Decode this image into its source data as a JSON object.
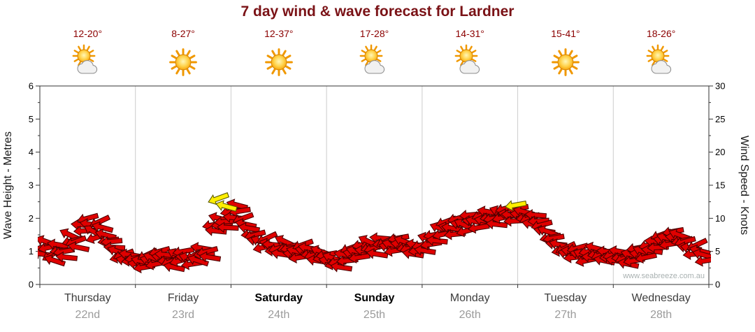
{
  "title": "7 day wind & wave forecast for Lardner",
  "watermark": "www.seabreeze.com.au",
  "axes": {
    "left_label": "Wave Height - Metres",
    "right_label": "Wind Speed - Knots",
    "left_ticks": [
      0,
      1,
      2,
      3,
      4,
      5,
      6
    ],
    "right_ticks": [
      0,
      5,
      10,
      15,
      20,
      25,
      30
    ],
    "left_range": [
      0,
      6
    ],
    "right_range": [
      0,
      30
    ],
    "x_range_hours": [
      0,
      168
    ]
  },
  "days": [
    {
      "name": "Thursday",
      "date": "22nd",
      "temp": "12-20°",
      "icon": "partly-cloudy",
      "bold": false
    },
    {
      "name": "Friday",
      "date": "23rd",
      "temp": "8-27°",
      "icon": "sunny",
      "bold": false
    },
    {
      "name": "Saturday",
      "date": "24th",
      "temp": "12-37°",
      "icon": "sunny",
      "bold": true
    },
    {
      "name": "Sunday",
      "date": "25th",
      "temp": "17-28°",
      "icon": "partly-cloudy",
      "bold": true
    },
    {
      "name": "Monday",
      "date": "26th",
      "temp": "14-31°",
      "icon": "partly-cloudy",
      "bold": false
    },
    {
      "name": "Tuesday",
      "date": "27th",
      "temp": "15-41°",
      "icon": "sunny",
      "bold": false
    },
    {
      "name": "Wednesday",
      "date": "28th",
      "temp": "18-26°",
      "icon": "partly-cloudy",
      "bold": false
    }
  ],
  "chart_data": {
    "type": "scatter",
    "title": "7 day wind & wave forecast for Lardner",
    "xlabel": "",
    "ylabel": "Wave Height - Metres",
    "y2label": "Wind Speed - Knots",
    "ylim": [
      0,
      6
    ],
    "y2lim": [
      0,
      30
    ],
    "x_unit": "hours from start of Thursday 22nd",
    "grid": "vertical-day-boundaries",
    "legend": "none",
    "x_categories": [
      "Thursday 22nd",
      "Friday 23rd",
      "Saturday 24th",
      "Sunday 25th",
      "Monday 26th",
      "Tuesday 27th",
      "Wednesday 28th"
    ],
    "series": [
      {
        "name": "Wind speed arrows",
        "unit": "knots",
        "color": "#e00000",
        "outline": "#4d0000",
        "density_echo": true,
        "points": [
          [
            0,
            5.5,
            -15
          ],
          [
            1.5,
            6.5,
            20
          ],
          [
            3,
            4.5,
            -30
          ],
          [
            4.5,
            6,
            10
          ],
          [
            6,
            5,
            -10
          ],
          [
            7.5,
            7.5,
            25
          ],
          [
            9,
            6.5,
            -20
          ],
          [
            10.5,
            9,
            5
          ],
          [
            12,
            10,
            -15
          ],
          [
            13.5,
            8,
            30
          ],
          [
            15,
            9.5,
            -25
          ],
          [
            16.5,
            7.5,
            15
          ],
          [
            18,
            6.5,
            -5
          ],
          [
            19.5,
            5,
            20
          ],
          [
            21,
            4.5,
            -20
          ],
          [
            22.5,
            4.5,
            10
          ],
          [
            24,
            4,
            -10
          ],
          [
            25.5,
            3.5,
            15
          ],
          [
            27,
            4.5,
            -25
          ],
          [
            28.5,
            4,
            20
          ],
          [
            30,
            5,
            -15
          ],
          [
            31.5,
            4.5,
            5
          ],
          [
            33,
            3.5,
            -20
          ],
          [
            34.5,
            4.5,
            25
          ],
          [
            36,
            5,
            -10
          ],
          [
            37.5,
            4,
            15
          ],
          [
            39,
            4.5,
            -30
          ],
          [
            40.5,
            5.5,
            10
          ],
          [
            42,
            5,
            -15
          ],
          [
            43.5,
            9,
            -10
          ],
          [
            45,
            10,
            15
          ],
          [
            46.5,
            9.5,
            -5
          ],
          [
            48,
            11,
            -10
          ],
          [
            49.5,
            12,
            15
          ],
          [
            51,
            10,
            -20
          ],
          [
            52.5,
            8.5,
            10
          ],
          [
            54,
            7.5,
            -15
          ],
          [
            55.5,
            6.5,
            20
          ],
          [
            57,
            7,
            -25
          ],
          [
            58.5,
            6,
            5
          ],
          [
            60,
            5.5,
            -15
          ],
          [
            61.5,
            6.5,
            25
          ],
          [
            63,
            5.5,
            -10
          ],
          [
            64.5,
            5,
            15
          ],
          [
            66,
            6,
            -20
          ],
          [
            67.5,
            5.5,
            10
          ],
          [
            69,
            4.5,
            -15
          ],
          [
            70.5,
            5,
            20
          ],
          [
            72,
            4.5,
            -10
          ],
          [
            73.5,
            4,
            20
          ],
          [
            75,
            3.5,
            -15
          ],
          [
            76.5,
            4.5,
            10
          ],
          [
            78,
            5.5,
            -20
          ],
          [
            79.5,
            5,
            15
          ],
          [
            81,
            6,
            -10
          ],
          [
            82.5,
            6.5,
            25
          ],
          [
            84,
            5.5,
            -15
          ],
          [
            85.5,
            7,
            5
          ],
          [
            87,
            6.5,
            -25
          ],
          [
            88.5,
            6,
            15
          ],
          [
            90,
            7,
            -10
          ],
          [
            91.5,
            6.5,
            20
          ],
          [
            93,
            5.5,
            -15
          ],
          [
            94.5,
            6,
            10
          ],
          [
            96,
            6,
            -15
          ],
          [
            97.5,
            7,
            15
          ],
          [
            99,
            7.5,
            -10
          ],
          [
            100.5,
            8.5,
            20
          ],
          [
            102,
            9.5,
            -20
          ],
          [
            103.5,
            8.5,
            10
          ],
          [
            105,
            10,
            -15
          ],
          [
            106.5,
            9,
            25
          ],
          [
            108,
            10.5,
            -5
          ],
          [
            109.5,
            9.5,
            15
          ],
          [
            111,
            10.5,
            -20
          ],
          [
            112.5,
            11,
            10
          ],
          [
            114,
            10,
            -10
          ],
          [
            115.5,
            11,
            20
          ],
          [
            117,
            11.5,
            -15
          ],
          [
            118.5,
            10.5,
            5
          ],
          [
            120,
            11.5,
            -10
          ],
          [
            121.5,
            11,
            15
          ],
          [
            123,
            10,
            -20
          ],
          [
            124.5,
            10.5,
            5
          ],
          [
            126,
            9,
            -15
          ],
          [
            127.5,
            8,
            20
          ],
          [
            129,
            7,
            -10
          ],
          [
            130.5,
            6,
            15
          ],
          [
            132,
            5.5,
            -25
          ],
          [
            133.5,
            5,
            10
          ],
          [
            135,
            5.5,
            -15
          ],
          [
            136.5,
            4.5,
            20
          ],
          [
            138,
            5,
            -10
          ],
          [
            139.5,
            5.5,
            15
          ],
          [
            141,
            4.5,
            -20
          ],
          [
            142.5,
            5,
            5
          ],
          [
            144,
            4.5,
            -15
          ],
          [
            145.5,
            5,
            10
          ],
          [
            147,
            4,
            -20
          ],
          [
            148.5,
            4.5,
            15
          ],
          [
            150,
            5.5,
            -10
          ],
          [
            151.5,
            5,
            20
          ],
          [
            153,
            6,
            -15
          ],
          [
            154.5,
            6.5,
            5
          ],
          [
            156,
            7.5,
            -20
          ],
          [
            157.5,
            7,
            15
          ],
          [
            159,
            8,
            -10
          ],
          [
            160.5,
            7.5,
            20
          ],
          [
            162,
            6.5,
            -15
          ],
          [
            163.5,
            5.5,
            10
          ],
          [
            165,
            6,
            -25
          ],
          [
            166.5,
            4.5,
            15
          ]
        ]
      },
      {
        "name": "Wind speed arrows (highlighted gusts)",
        "unit": "knots",
        "color": "#ffee00",
        "outline": "#5a5a00",
        "density_echo": false,
        "points": [
          [
            44.8,
            13,
            -20
          ],
          [
            46.8,
            11.8,
            15
          ],
          [
            119.5,
            12,
            -10
          ]
        ]
      }
    ]
  }
}
